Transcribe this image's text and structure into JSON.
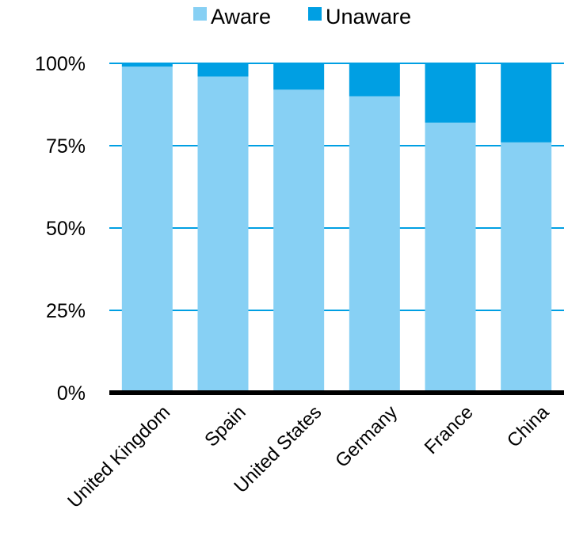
{
  "chart_data": {
    "type": "bar",
    "stacked": true,
    "categories": [
      "United Kingdom",
      "Spain",
      "United States",
      "Germany",
      "France",
      "China"
    ],
    "series": [
      {
        "name": "Aware",
        "values": [
          99,
          96,
          92,
          90,
          82,
          76
        ],
        "color": "#87d0f4"
      },
      {
        "name": "Unaware",
        "values": [
          1,
          4,
          8,
          10,
          18,
          24
        ],
        "color": "#009fe3"
      }
    ],
    "y_ticks": [
      "0%",
      "25%",
      "50%",
      "75%",
      "100%"
    ],
    "ylim": [
      0,
      100
    ],
    "grid": true,
    "gridline_color": "#009fe3",
    "axis_color": "#000000",
    "legend_position": "top-center"
  }
}
